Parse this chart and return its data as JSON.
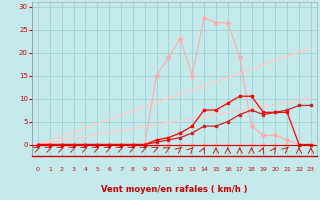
{
  "xlabel": "Vent moyen/en rafales ( km/h )",
  "xlim": [
    -0.5,
    23.5
  ],
  "ylim": [
    -2.5,
    31
  ],
  "yticks": [
    0,
    5,
    10,
    15,
    20,
    25,
    30
  ],
  "xticks": [
    0,
    1,
    2,
    3,
    4,
    5,
    6,
    7,
    8,
    9,
    10,
    11,
    12,
    13,
    14,
    15,
    16,
    17,
    18,
    19,
    20,
    21,
    22,
    23
  ],
  "bg_color": "#c5eaec",
  "grid_color": "#99cdd0",
  "line_pink_flat": {
    "x": [
      0,
      1,
      2,
      3,
      4,
      5,
      6,
      7,
      8,
      9,
      10,
      11,
      12,
      13,
      14,
      15,
      16,
      17,
      18,
      19,
      20,
      21,
      22,
      23
    ],
    "y": [
      0,
      0,
      0,
      0,
      0,
      0,
      0,
      0,
      0,
      0,
      0,
      0,
      0,
      0,
      0,
      0,
      0,
      0,
      0,
      0,
      0,
      0,
      0,
      0
    ],
    "color": "#ffaaaa",
    "lw": 0.8,
    "marker": "D",
    "ms": 2.0
  },
  "line_pink_peak": {
    "x": [
      0,
      1,
      2,
      3,
      4,
      5,
      6,
      7,
      8,
      9,
      10,
      11,
      12,
      13,
      14,
      15,
      16,
      17,
      18,
      19,
      20,
      21,
      22,
      23
    ],
    "y": [
      0,
      0,
      0,
      0,
      0,
      0,
      0,
      0,
      0,
      0,
      15,
      19,
      23,
      15,
      27.5,
      26.5,
      26.5,
      19,
      4,
      2,
      2,
      1,
      0,
      0
    ],
    "color": "#ffaaaa",
    "lw": 0.8,
    "marker": "D",
    "ms": 2.0
  },
  "line_pale1": {
    "x": [
      0,
      23
    ],
    "y": [
      0,
      10
    ],
    "color": "#ffcccc",
    "lw": 1.0
  },
  "line_pale2": {
    "x": [
      0,
      23
    ],
    "y": [
      0,
      21
    ],
    "color": "#ffcccc",
    "lw": 1.0
  },
  "line_dark1": {
    "x": [
      0,
      1,
      2,
      3,
      4,
      5,
      6,
      7,
      8,
      9,
      10,
      11,
      12,
      13,
      14,
      15,
      16,
      17,
      18,
      19,
      20,
      21,
      22,
      23
    ],
    "y": [
      0,
      0,
      0,
      0,
      0,
      0,
      0,
      0,
      0,
      0,
      0.5,
      1,
      1.5,
      2.5,
      4,
      4,
      5,
      6.5,
      7.5,
      6.5,
      7,
      7.5,
      8.5,
      8.5
    ],
    "color": "#cc2222",
    "lw": 0.9,
    "marker": "s",
    "ms": 1.8
  },
  "line_dark2": {
    "x": [
      0,
      1,
      2,
      3,
      4,
      5,
      6,
      7,
      8,
      9,
      10,
      11,
      12,
      13,
      14,
      15,
      16,
      17,
      18,
      19,
      20,
      21,
      22,
      23
    ],
    "y": [
      0,
      0,
      0,
      0,
      0,
      0,
      0,
      0,
      0,
      0,
      1,
      1.5,
      2.5,
      4,
      7.5,
      7.5,
      9,
      10.5,
      10.5,
      7,
      7,
      7,
      0,
      0
    ],
    "color": "#ff0000",
    "lw": 0.9,
    "marker": "s",
    "ms": 1.8
  },
  "arrow_angles": [
    45,
    45,
    45,
    45,
    45,
    45,
    45,
    45,
    45,
    45,
    45,
    55,
    65,
    70,
    80,
    90,
    90,
    90,
    90,
    80,
    75,
    65,
    90,
    90
  ]
}
